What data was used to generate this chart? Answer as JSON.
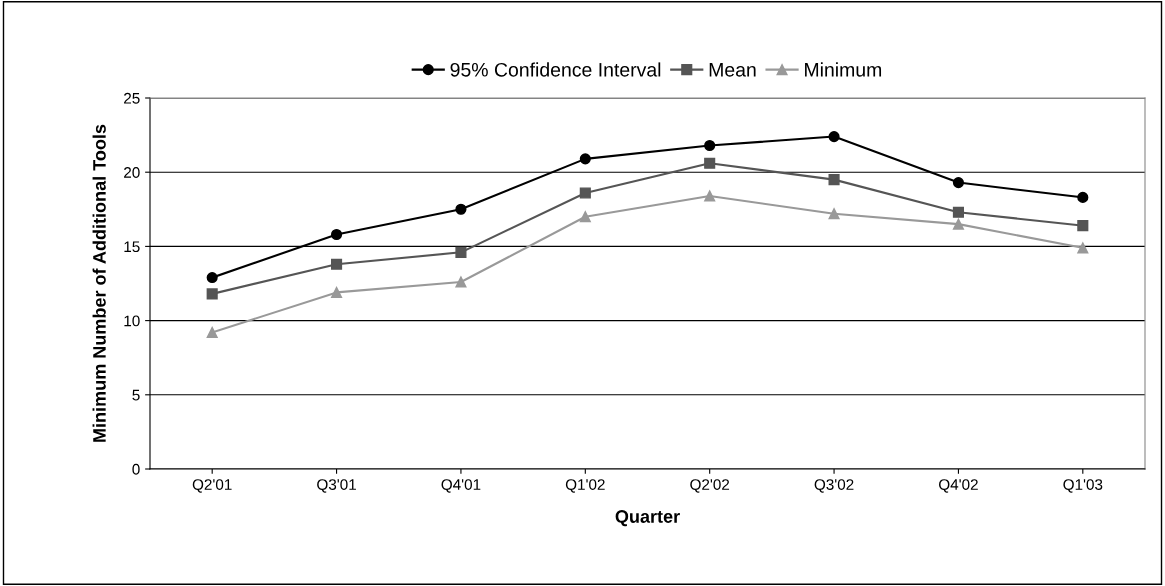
{
  "chart_data": {
    "type": "line",
    "xlabel": "Quarter",
    "ylabel": "Minimum Number of Additional Tools",
    "categories": [
      "Q2'01",
      "Q3'01",
      "Q4'01",
      "Q1'02",
      "Q2'02",
      "Q3'02",
      "Q4'02",
      "Q1'03"
    ],
    "series": [
      {
        "name": "95% Confidence Interval",
        "color": "#000000",
        "marker": "circle",
        "values": [
          12.9,
          15.8,
          17.5,
          20.9,
          21.8,
          22.4,
          19.3,
          18.3
        ]
      },
      {
        "name": "Mean",
        "color": "#555555",
        "marker": "square",
        "values": [
          11.8,
          13.8,
          14.6,
          18.6,
          20.6,
          19.5,
          17.3,
          16.4
        ]
      },
      {
        "name": "Minimum",
        "color": "#999999",
        "marker": "triangle",
        "values": [
          9.2,
          11.9,
          12.6,
          17.0,
          18.4,
          17.2,
          16.5,
          14.9
        ]
      }
    ],
    "ylim": [
      0,
      25
    ],
    "yticks": [
      0,
      5,
      10,
      15,
      20,
      25
    ],
    "grid": "y",
    "legend": "top",
    "line_style": "solid"
  }
}
